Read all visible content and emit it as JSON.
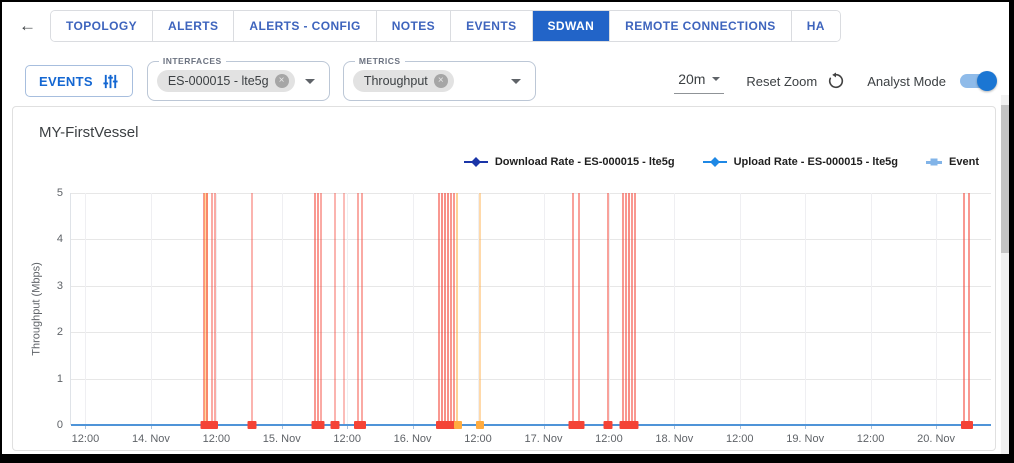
{
  "header": {
    "back_icon": "←",
    "tabs": [
      {
        "label": "TOPOLOGY",
        "active": false
      },
      {
        "label": "ALERTS",
        "active": false
      },
      {
        "label": "ALERTS - CONFIG",
        "active": false
      },
      {
        "label": "NOTES",
        "active": false
      },
      {
        "label": "EVENTS",
        "active": false
      },
      {
        "label": "SDWAN",
        "active": true
      },
      {
        "label": "REMOTE CONNECTIONS",
        "active": false
      },
      {
        "label": "HA",
        "active": false
      }
    ],
    "active_tab_color": "#2264c8",
    "tab_text_color": "#3e64bd"
  },
  "toolbar": {
    "events_button": "EVENTS",
    "interfaces": {
      "label": "INTERFACES",
      "chip": "ES-000015 - lte5g"
    },
    "metrics": {
      "label": "METRICS",
      "chip": "Throughput"
    },
    "interval": "20m",
    "reset_zoom": "Reset Zoom",
    "analyst_mode": "Analyst Mode",
    "analyst_mode_on": true,
    "accent_color": "#1b76d3"
  },
  "chart_data": {
    "type": "line",
    "title": "MY-FirstVessel",
    "ylabel": "Throughput (Mbps)",
    "ylim": [
      0,
      5
    ],
    "yticks": [
      0,
      1,
      2,
      3,
      4,
      5
    ],
    "grid": true,
    "legend_position": "top-right",
    "xticks": [
      {
        "label": "12:00",
        "pct": 1.57
      },
      {
        "label": "14. Nov",
        "pct": 8.69
      },
      {
        "label": "12:00",
        "pct": 15.8
      },
      {
        "label": "15. Nov",
        "pct": 22.91
      },
      {
        "label": "12:00",
        "pct": 30.02
      },
      {
        "label": "16. Nov",
        "pct": 37.13
      },
      {
        "label": "12:00",
        "pct": 44.24
      },
      {
        "label": "17. Nov",
        "pct": 51.36
      },
      {
        "label": "12:00",
        "pct": 58.47
      },
      {
        "label": "18. Nov",
        "pct": 65.58
      },
      {
        "label": "12:00",
        "pct": 72.69
      },
      {
        "label": "19. Nov",
        "pct": 79.8
      },
      {
        "label": "12:00",
        "pct": 86.91
      },
      {
        "label": "20. Nov",
        "pct": 94.03
      }
    ],
    "series": [
      {
        "name": "Download Rate - ES-000015 - lte5g",
        "color": "#1a35a8",
        "marker": "diamond",
        "values_constant": 0
      },
      {
        "name": "Upload Rate - ES-000015 - lte5g",
        "color": "#1e88e5",
        "marker": "diamond",
        "values_constant": 0
      }
    ],
    "event_series_name": "Event",
    "legend": [
      {
        "label": "Download Rate - ES-000015 - lte5g",
        "color": "#1a35a8",
        "marker": "diamond"
      },
      {
        "label": "Upload Rate - ES-000015 - lte5g",
        "color": "#1e88e5",
        "marker": "diamond"
      },
      {
        "label": "Event",
        "color": "#82b4e8",
        "marker": "square"
      }
    ],
    "baseline_color": "#4f94d8",
    "events": {
      "lines": [
        {
          "pct": 14.44,
          "c": "rgba(244,67,54,0.55)"
        },
        {
          "pct": 14.66,
          "c": "rgba(255,171,64,0.45)",
          "w": 4
        },
        {
          "pct": 14.77,
          "c": "rgba(244,67,54,0.55)"
        },
        {
          "pct": 15.31,
          "c": "rgba(244,67,54,0.45)"
        },
        {
          "pct": 15.64,
          "c": "rgba(244,67,54,0.45)"
        },
        {
          "pct": 19.65,
          "c": "rgba(244,67,54,0.40)"
        },
        {
          "pct": 26.49,
          "c": "rgba(244,67,54,0.55)"
        },
        {
          "pct": 26.82,
          "c": "rgba(244,67,54,0.55)"
        },
        {
          "pct": 27.14,
          "c": "rgba(244,67,54,0.45)"
        },
        {
          "pct": 28.66,
          "c": "rgba(244,67,54,0.40)"
        },
        {
          "pct": 29.64,
          "c": "rgba(244,67,54,0.35)"
        },
        {
          "pct": 31.16,
          "c": "rgba(244,67,54,0.45)"
        },
        {
          "pct": 31.6,
          "c": "rgba(244,67,54,0.45)"
        },
        {
          "pct": 39.96,
          "c": "rgba(244,67,54,0.55)"
        },
        {
          "pct": 40.28,
          "c": "rgba(244,67,54,0.60)"
        },
        {
          "pct": 40.61,
          "c": "rgba(244,67,54,0.60)"
        },
        {
          "pct": 40.93,
          "c": "rgba(244,67,54,0.60)"
        },
        {
          "pct": 41.26,
          "c": "rgba(244,67,54,0.55)"
        },
        {
          "pct": 41.58,
          "c": "rgba(244,67,54,0.55)"
        },
        {
          "pct": 41.91,
          "c": "rgba(255,171,64,0.55)"
        },
        {
          "pct": 44.41,
          "c": "rgba(255,171,64,0.45)"
        },
        {
          "pct": 54.61,
          "c": "rgba(244,67,54,0.50)"
        },
        {
          "pct": 55.27,
          "c": "rgba(244,67,54,0.50)"
        },
        {
          "pct": 58.41,
          "c": "rgba(244,67,54,0.50)"
        },
        {
          "pct": 60.04,
          "c": "rgba(244,67,54,0.55)"
        },
        {
          "pct": 60.37,
          "c": "rgba(244,67,54,0.55)"
        },
        {
          "pct": 60.69,
          "c": "rgba(244,67,54,0.60)"
        },
        {
          "pct": 61.02,
          "c": "rgba(244,67,54,0.55)"
        },
        {
          "pct": 61.35,
          "c": "rgba(244,67,54,0.55)"
        },
        {
          "pct": 97.07,
          "c": "rgba(244,67,54,0.55)"
        },
        {
          "pct": 97.61,
          "c": "rgba(244,67,54,0.55)"
        }
      ],
      "markers": [
        {
          "pct": 14.55,
          "w": 9,
          "c": "#f44336"
        },
        {
          "pct": 15.45,
          "w": 10,
          "c": "#f44336"
        },
        {
          "pct": 19.65,
          "w": 9,
          "c": "#f44336"
        },
        {
          "pct": 26.9,
          "w": 13,
          "c": "#f44336"
        },
        {
          "pct": 28.7,
          "w": 9,
          "c": "#f44336"
        },
        {
          "pct": 31.4,
          "w": 12,
          "c": "#f44336"
        },
        {
          "pct": 40.8,
          "w": 20,
          "c": "#f44336"
        },
        {
          "pct": 42.1,
          "w": 8,
          "c": "#ffab40"
        },
        {
          "pct": 44.41,
          "w": 8,
          "c": "#ffab40"
        },
        {
          "pct": 54.61,
          "w": 9,
          "c": "#f44336"
        },
        {
          "pct": 55.37,
          "w": 9,
          "c": "#f44336"
        },
        {
          "pct": 58.41,
          "w": 9,
          "c": "#f44336"
        },
        {
          "pct": 60.7,
          "w": 19,
          "c": "#f44336"
        },
        {
          "pct": 97.35,
          "w": 12,
          "c": "#f44336"
        }
      ]
    }
  }
}
